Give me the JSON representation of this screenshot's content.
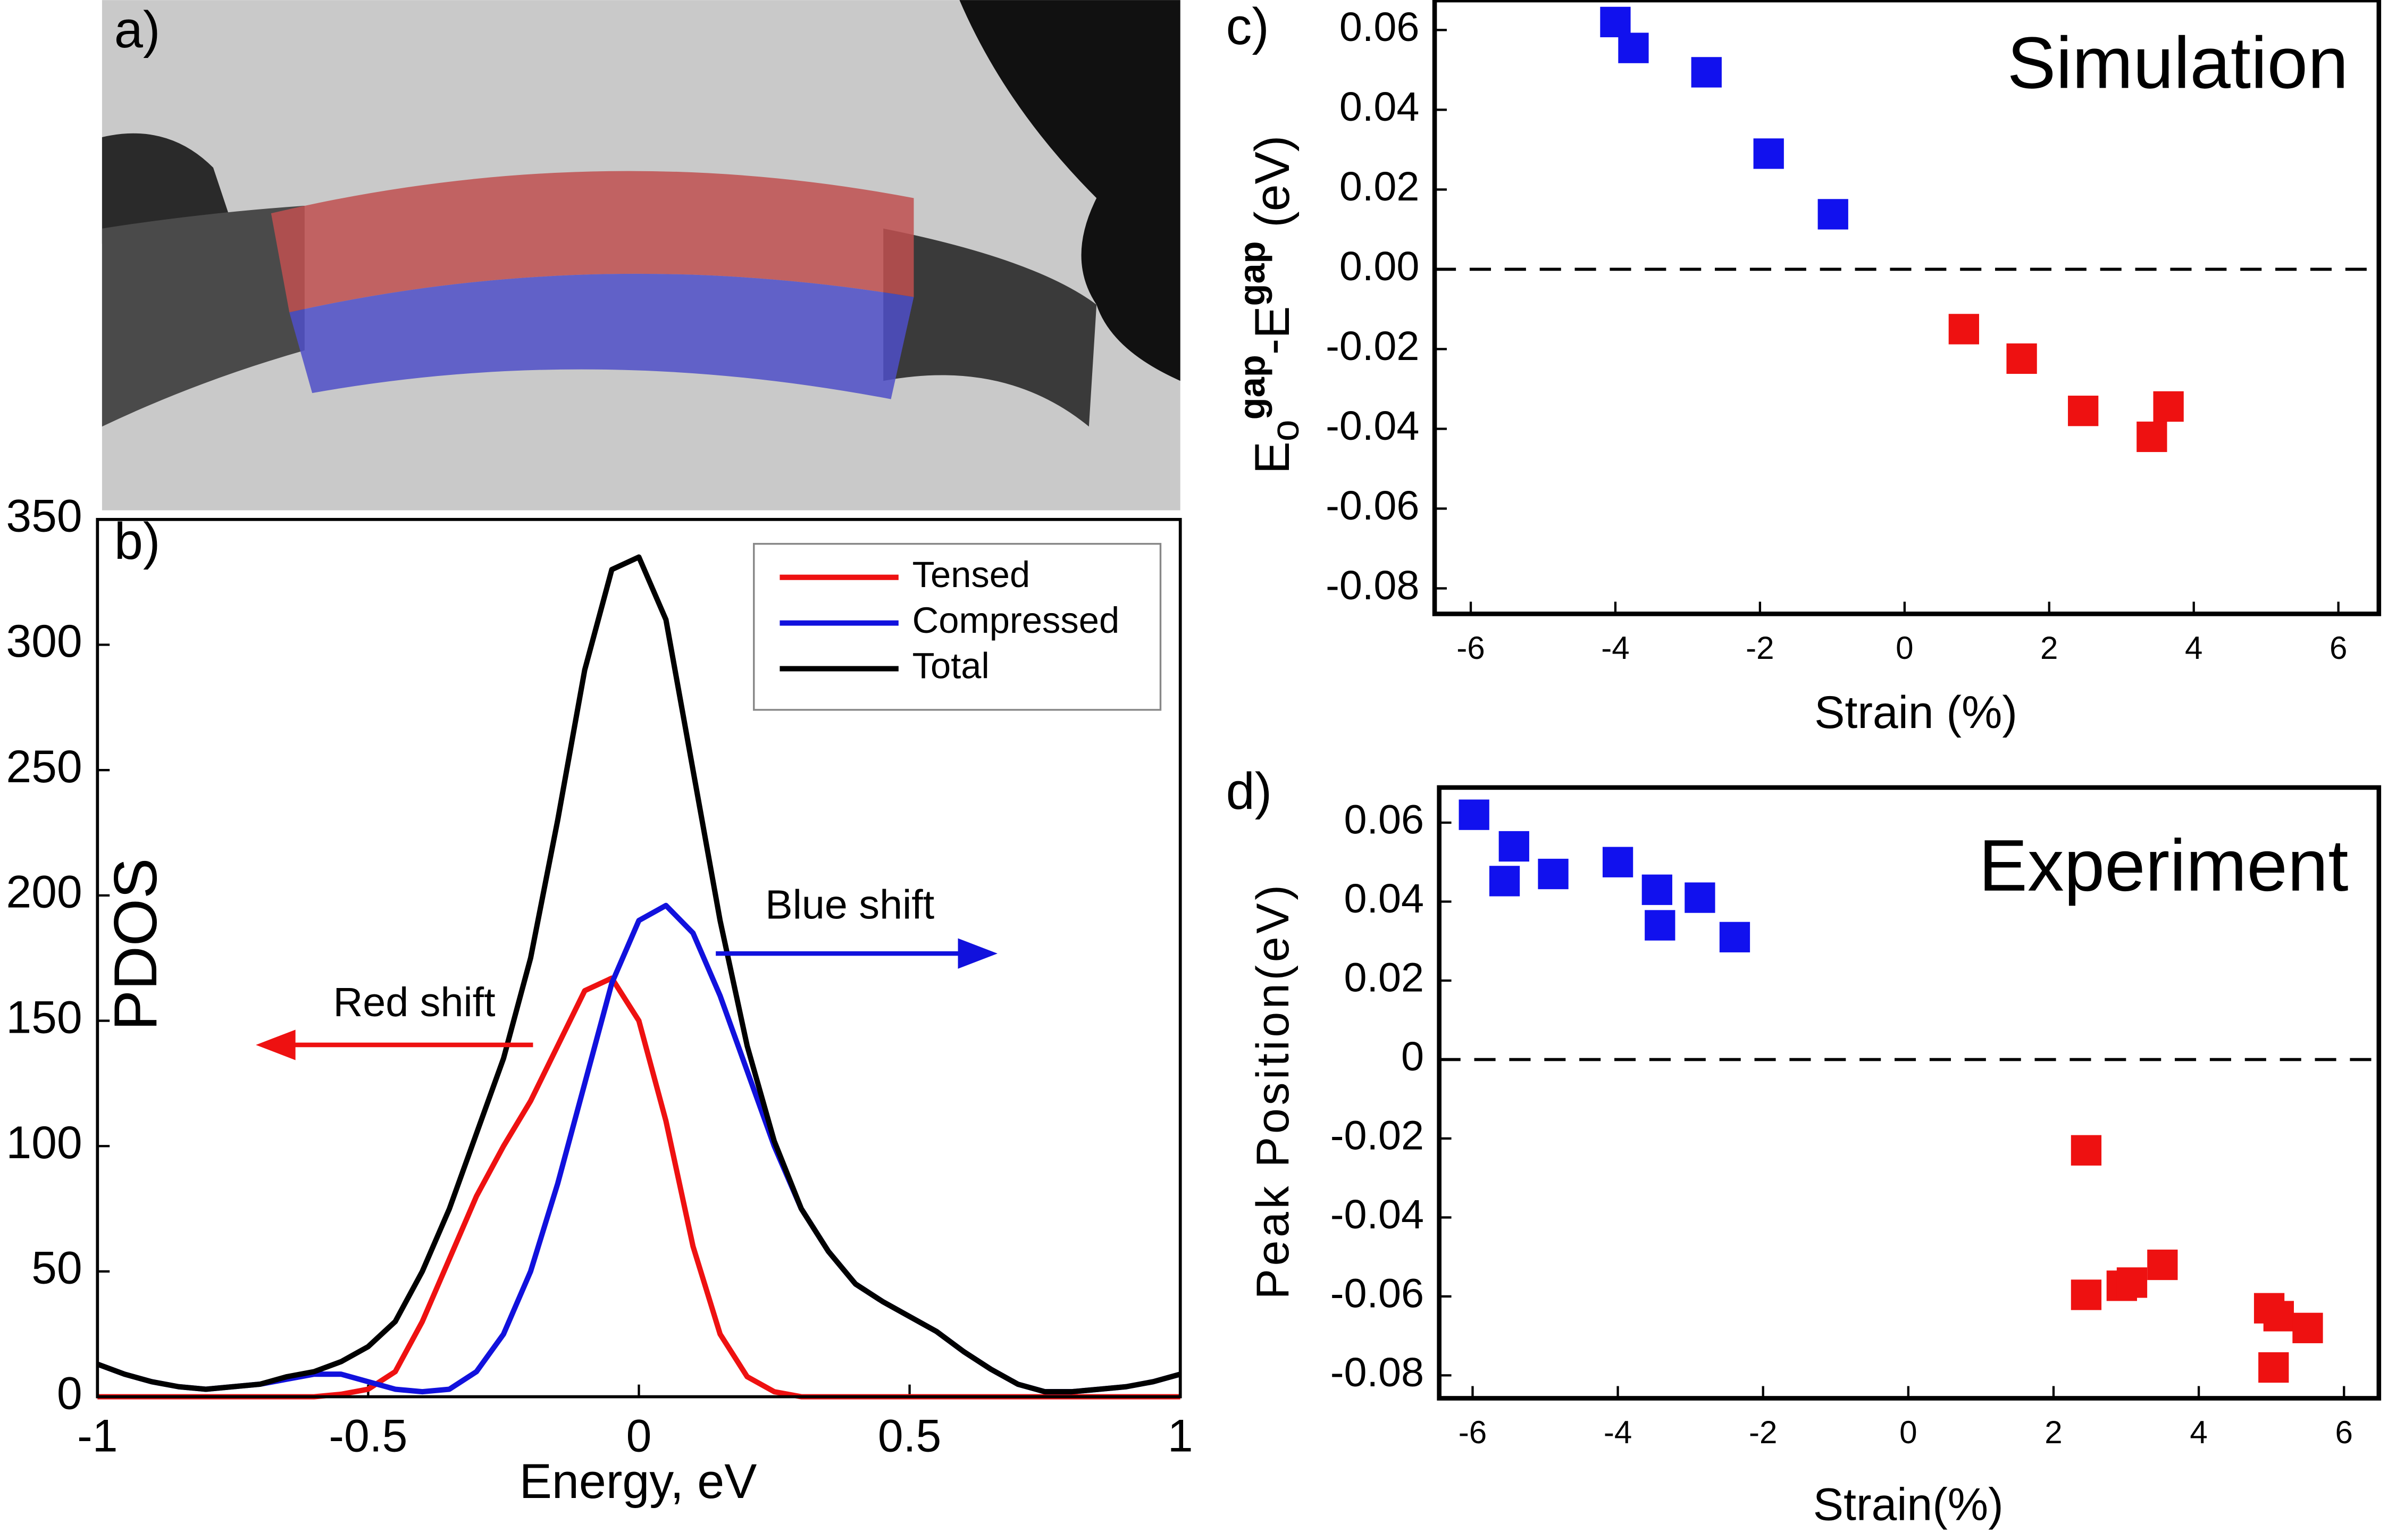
{
  "chart_data": [
    {
      "type": "image",
      "label": "a)"
    },
    {
      "type": "line",
      "label": "b)",
      "xlabel": "Energy, eV",
      "ylabel": "PDOS",
      "x": [
        -1,
        -0.95,
        -0.9,
        -0.85,
        -0.8,
        -0.75,
        -0.7,
        -0.65,
        -0.6,
        -0.55,
        -0.5,
        -0.45,
        -0.4,
        -0.35,
        -0.3,
        -0.25,
        -0.2,
        -0.15,
        -0.1,
        -0.05,
        0,
        0.05,
        0.1,
        0.15,
        0.2,
        0.25,
        0.3,
        0.35,
        0.4,
        0.45,
        0.5,
        0.55,
        0.6,
        0.65,
        0.7,
        0.75,
        0.8,
        0.85,
        0.9,
        0.95,
        1
      ],
      "series": [
        {
          "name": "Tensed",
          "color": "#ee1111",
          "values": [
            0,
            0,
            0,
            0,
            0,
            0,
            0,
            0,
            0,
            1,
            3,
            10,
            30,
            55,
            80,
            100,
            118,
            140,
            162,
            167,
            150,
            110,
            60,
            25,
            8,
            2,
            0,
            0,
            0,
            0,
            0,
            0,
            0,
            0,
            0,
            0,
            0,
            0,
            0,
            0,
            0
          ]
        },
        {
          "name": "Compressed",
          "color": "#1111dd",
          "values": [
            13,
            9,
            6,
            4,
            3,
            4,
            5,
            7,
            9,
            9,
            6,
            3,
            2,
            3,
            10,
            25,
            50,
            85,
            125,
            165,
            190,
            196,
            185,
            160,
            130,
            100,
            75,
            58,
            45,
            38,
            32,
            26,
            18,
            11,
            5,
            2,
            2,
            3,
            4,
            6,
            9
          ]
        },
        {
          "name": "Total",
          "color": "#000000",
          "values": [
            13,
            9,
            6,
            4,
            3,
            4,
            5,
            8,
            10,
            14,
            20,
            30,
            50,
            75,
            105,
            135,
            175,
            230,
            290,
            330,
            335,
            310,
            250,
            190,
            140,
            102,
            75,
            58,
            45,
            38,
            32,
            26,
            18,
            11,
            5,
            2,
            2,
            3,
            4,
            6,
            9
          ]
        }
      ],
      "xlim": [
        -1,
        1
      ],
      "ylim": [
        0,
        350
      ],
      "xticks": [
        -1,
        -0.5,
        0,
        0.5,
        1
      ],
      "yticks": [
        0,
        50,
        100,
        150,
        200,
        250,
        300,
        350
      ],
      "legend": "upper right",
      "annotations": [
        {
          "text": "Red shift",
          "color": "#ee1111"
        },
        {
          "text": "Blue shift",
          "color": "#1111dd"
        }
      ]
    },
    {
      "type": "scatter",
      "label": "c)",
      "xlabel": "Strain (%)",
      "ylabel": [
        "E",
        "o",
        "gap",
        "-E",
        "gap",
        " (eV)"
      ],
      "annotation": "Simulation",
      "series": [
        {
          "color": "#1111ee",
          "x": [
            -4.0,
            -3.75,
            -2.74,
            -1.88,
            -0.99
          ],
          "values": [
            0.062,
            0.0555,
            0.0494,
            0.029,
            0.0138
          ]
        },
        {
          "color": "#ee1111",
          "x": [
            0.82,
            1.62,
            2.47,
            3.65,
            3.42
          ],
          "values": [
            -0.015,
            -0.0224,
            -0.0355,
            -0.0344,
            -0.042
          ]
        }
      ],
      "hline": 0,
      "xlim": [
        -6.5,
        6.56
      ],
      "ylim": [
        -0.0864,
        0.0675
      ],
      "xticks": [
        -6,
        -4,
        -2,
        0,
        2,
        4,
        6
      ],
      "yticks": [
        0.06,
        0.04,
        0.02,
        {
          "value": 0,
          "label": "0.00"
        },
        -0.02,
        -0.04,
        -0.06,
        -0.08
      ]
    },
    {
      "type": "scatter",
      "label": "d)",
      "xlabel": "Strain(%)",
      "ylabel": "Peak Position(eV)",
      "annotation": "Experiment",
      "series": [
        {
          "color": "#1111ee",
          "x": [
            -5.98,
            -5.43,
            -5.56,
            -4.89,
            -4.0,
            -3.46,
            -3.42,
            -2.87,
            -2.39
          ],
          "values": [
            0.062,
            0.054,
            0.0452,
            0.047,
            0.05,
            0.043,
            0.034,
            0.041,
            0.031
          ]
        },
        {
          "color": "#ee1111",
          "x": [
            2.45,
            2.45,
            2.94,
            3.08,
            3.5,
            5.03,
            4.97,
            5.1,
            5.5
          ],
          "values": [
            -0.023,
            -0.0596,
            -0.0573,
            -0.0565,
            -0.052,
            -0.078,
            -0.063,
            -0.065,
            -0.068
          ]
        }
      ],
      "hline": 0,
      "xlim": [
        -6.46,
        6.48
      ],
      "ylim": [
        -0.0858,
        0.0689
      ],
      "xticks": [
        -6,
        -4,
        -2,
        0,
        2,
        4,
        6
      ],
      "yticks": [
        0.06,
        0.04,
        0.02,
        0,
        -0.02,
        -0.04,
        -0.06,
        -0.08
      ]
    }
  ]
}
